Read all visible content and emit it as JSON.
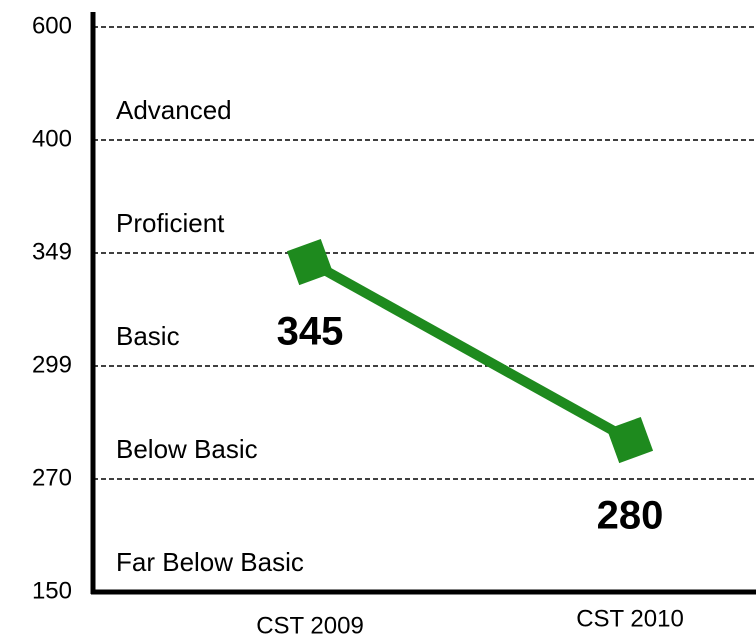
{
  "chart_data": {
    "type": "line",
    "categories": [
      "CST 2009",
      "CST 2010"
    ],
    "values": [
      345,
      280
    ],
    "color": "#1e8a1e",
    "ylim": [
      150,
      600
    ],
    "yticks": [
      150,
      270,
      299,
      349,
      400,
      600
    ],
    "bands": [
      "Far Below Basic",
      "Below Basic",
      "Basic",
      "Proficient",
      "Advanced"
    ],
    "grid": true
  }
}
